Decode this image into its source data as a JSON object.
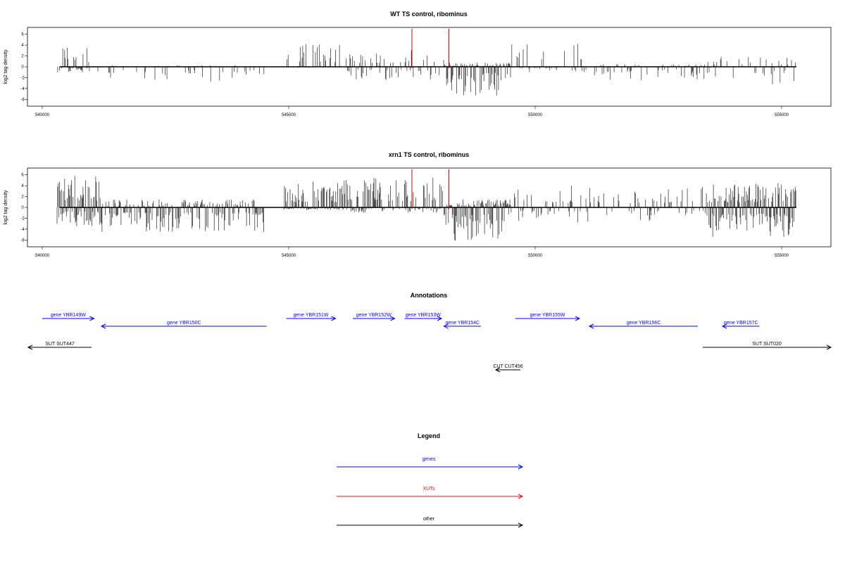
{
  "chart_data": [
    {
      "type": "bar",
      "title": "WT TS control, ribominus",
      "ylabel": "log2 tag density",
      "xlabel": "",
      "xlim": [
        539700,
        556000
      ],
      "ylim": [
        -7,
        7
      ],
      "xticks": [
        540000,
        545000,
        550000,
        555000
      ],
      "yticks": [
        6,
        4,
        2,
        0,
        -2,
        -4,
        -6
      ],
      "marker_lines": [
        547500,
        548250
      ],
      "marker_color": "#cc0000",
      "segments": [
        {
          "range": [
            540300,
            541000
          ],
          "density": 0.55,
          "pos_max": 4.5,
          "neg_max": 1.0
        },
        {
          "range": [
            541000,
            544500
          ],
          "density": 0.25,
          "pos_max": 0.3,
          "neg_max": 3.0
        },
        {
          "range": [
            544950,
            546100
          ],
          "density": 0.55,
          "pos_max": 4.2,
          "neg_max": 0.2
        },
        {
          "range": [
            546100,
            548150
          ],
          "density": 0.35,
          "pos_max": 3.5,
          "neg_max": 2.5
        },
        {
          "range": [
            548150,
            549500
          ],
          "density": 0.85,
          "pos_max": 0.8,
          "neg_max": 5.5
        },
        {
          "range": [
            549500,
            551100
          ],
          "density": 0.3,
          "pos_max": 4.5,
          "neg_max": 1.0
        },
        {
          "range": [
            551100,
            553400
          ],
          "density": 0.3,
          "pos_max": 0.5,
          "neg_max": 2.5
        },
        {
          "range": [
            553400,
            555300
          ],
          "density": 0.25,
          "pos_max": 2.0,
          "neg_max": 3.3
        }
      ]
    },
    {
      "type": "bar",
      "title": "xrn1 TS control, ribominus",
      "ylabel": "log2 tag density",
      "xlabel": "",
      "xlim": [
        539700,
        556000
      ],
      "ylim": [
        -7,
        7
      ],
      "xticks": [
        540000,
        545000,
        550000,
        555000
      ],
      "yticks": [
        6,
        4,
        2,
        0,
        -2,
        -4,
        -6
      ],
      "marker_lines": [
        547500,
        548250
      ],
      "marker_color": "#cc0000",
      "segments": [
        {
          "range": [
            540300,
            541200
          ],
          "density": 0.95,
          "pos_max": 6.0,
          "neg_max": 3.5
        },
        {
          "range": [
            541200,
            544500
          ],
          "density": 0.7,
          "pos_max": 1.5,
          "neg_max": 4.5
        },
        {
          "range": [
            544900,
            546100
          ],
          "density": 0.95,
          "pos_max": 4.8,
          "neg_max": 0.5
        },
        {
          "range": [
            546100,
            548150
          ],
          "density": 0.6,
          "pos_max": 5.8,
          "neg_max": 1.0
        },
        {
          "range": [
            548150,
            549500
          ],
          "density": 0.95,
          "pos_max": 1.5,
          "neg_max": 6.3
        },
        {
          "range": [
            549500,
            553500
          ],
          "density": 0.3,
          "pos_max": 4.0,
          "neg_max": 2.8
        },
        {
          "range": [
            553500,
            555300
          ],
          "density": 0.95,
          "pos_max": 4.5,
          "neg_max": 5.5
        }
      ]
    }
  ],
  "annotations": {
    "title": "Annotations",
    "features": [
      {
        "label": "gene YBR149W",
        "start": 540000,
        "end": 541050,
        "strand": "+",
        "type": "gene",
        "row": 0
      },
      {
        "label": "gene YBR150C",
        "start": 541200,
        "end": 544550,
        "strand": "-",
        "type": "gene",
        "row": 1
      },
      {
        "label": "gene YBR151W",
        "start": 544950,
        "end": 545950,
        "strand": "+",
        "type": "gene",
        "row": 0
      },
      {
        "label": "gene YBR152W",
        "start": 546300,
        "end": 547150,
        "strand": "+",
        "type": "gene",
        "row": 0
      },
      {
        "label": "gene YBR153W",
        "start": 547350,
        "end": 548100,
        "strand": "+",
        "type": "gene",
        "row": 0
      },
      {
        "label": "gene YBR154C",
        "start": 548150,
        "end": 548900,
        "strand": "-",
        "type": "gene",
        "row": 1
      },
      {
        "label": "gene YBR155W",
        "start": 549600,
        "end": 550900,
        "strand": "+",
        "type": "gene",
        "row": 0
      },
      {
        "label": "gene YBR156C",
        "start": 551100,
        "end": 553300,
        "strand": "-",
        "type": "gene",
        "row": 1
      },
      {
        "label": "gene YBR157C",
        "start": 553800,
        "end": 554550,
        "strand": "-",
        "type": "gene",
        "row": 1
      },
      {
        "label": "SUT SUT447",
        "start": 539700,
        "end": 541000,
        "strand": "-",
        "type": "other",
        "row": 2
      },
      {
        "label": "SUT SUT020",
        "start": 553400,
        "end": 556000,
        "strand": "+",
        "type": "other",
        "row": 2
      },
      {
        "label": "CUT CUT456",
        "start": 549200,
        "end": 549700,
        "strand": "-",
        "type": "other",
        "row": 3
      }
    ]
  },
  "legend": {
    "title": "Legend",
    "items": [
      {
        "label": "genes",
        "color": "#0000ff"
      },
      {
        "label": "XUTs",
        "color": "#ff0000"
      },
      {
        "label": "other",
        "color": "#000000"
      }
    ]
  }
}
